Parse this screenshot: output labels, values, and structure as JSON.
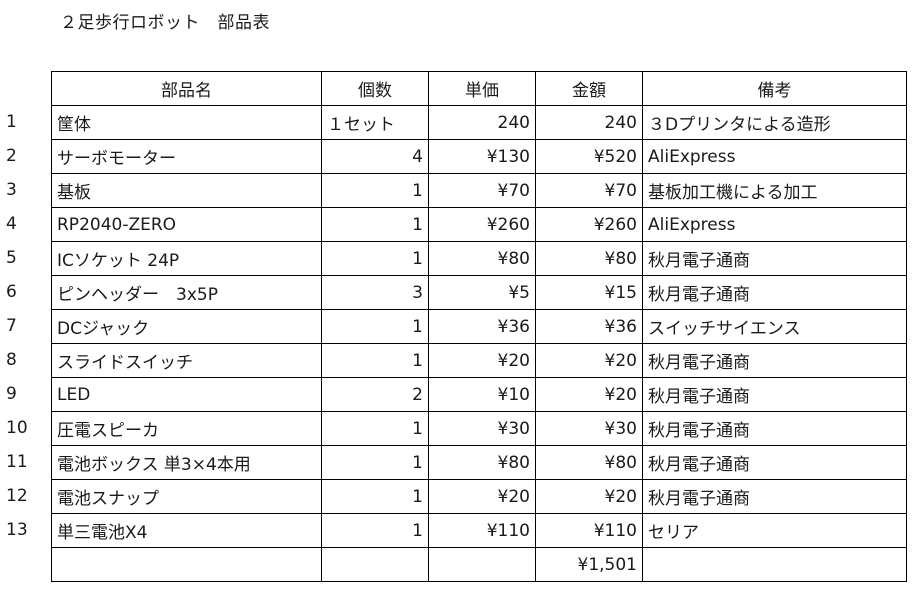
{
  "title": "２足歩行ロボット　部品表",
  "headers": {
    "name": "部品名",
    "qty": "個数",
    "unit_price": "単価",
    "amount": "金額",
    "notes": "備考"
  },
  "rows": [
    {
      "no": "1",
      "name": "筐体",
      "qty": "１セット",
      "unit_price": "240",
      "amount": "240",
      "notes": "３Dプリンタによる造形"
    },
    {
      "no": "2",
      "name": "サーボモーター",
      "qty": "4",
      "unit_price": "¥130",
      "amount": "¥520",
      "notes": "AliExpress"
    },
    {
      "no": "3",
      "name": "基板",
      "qty": "1",
      "unit_price": "¥70",
      "amount": "¥70",
      "notes": "基板加工機による加工"
    },
    {
      "no": "4",
      "name": "RP2040-ZERO",
      "qty": "1",
      "unit_price": "¥260",
      "amount": "¥260",
      "notes": "AliExpress"
    },
    {
      "no": "5",
      "name": "ICソケット 24P",
      "qty": "1",
      "unit_price": "¥80",
      "amount": "¥80",
      "notes": "秋月電子通商"
    },
    {
      "no": "6",
      "name": "ピンヘッダー　3x5P",
      "qty": "3",
      "unit_price": "¥5",
      "amount": "¥15",
      "notes": "秋月電子通商"
    },
    {
      "no": "7",
      "name": "DCジャック",
      "qty": "1",
      "unit_price": "¥36",
      "amount": "¥36",
      "notes": "スイッチサイエンス"
    },
    {
      "no": "8",
      "name": "スライドスイッチ",
      "qty": "1",
      "unit_price": "¥20",
      "amount": "¥20",
      "notes": "秋月電子通商"
    },
    {
      "no": "9",
      "name": "LED",
      "qty": "2",
      "unit_price": "¥10",
      "amount": "¥20",
      "notes": "秋月電子通商"
    },
    {
      "no": "10",
      "name": "圧電スピーカ",
      "qty": "1",
      "unit_price": "¥30",
      "amount": "¥30",
      "notes": "秋月電子通商"
    },
    {
      "no": "11",
      "name": "電池ボックス 単3×4本用",
      "qty": "1",
      "unit_price": "¥80",
      "amount": "¥80",
      "notes": "秋月電子通商"
    },
    {
      "no": "12",
      "name": "電池スナップ",
      "qty": "1",
      "unit_price": "¥20",
      "amount": "¥20",
      "notes": "秋月電子通商"
    },
    {
      "no": "13",
      "name": "単三電池X4",
      "qty": "1",
      "unit_price": "¥110",
      "amount": "¥110",
      "notes": "セリア"
    }
  ],
  "total": "¥1,501"
}
